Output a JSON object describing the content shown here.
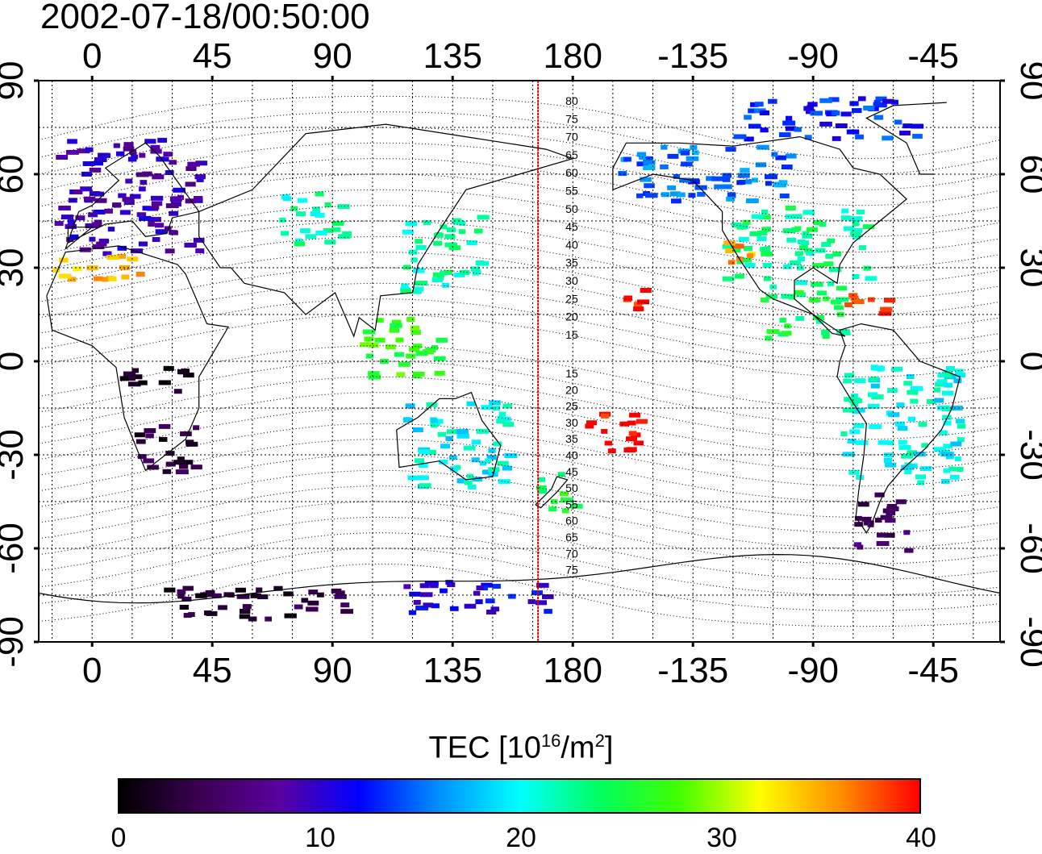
{
  "timestamp": "2002-07-18/00:50:00",
  "lon_ticks": [
    "0",
    "45",
    "90",
    "135",
    "180",
    "-135",
    "-90",
    "-45"
  ],
  "lat_ticks": [
    "90",
    "60",
    "30",
    "0",
    "-30",
    "-60",
    "-90"
  ],
  "mlat_labels_north": [
    "80",
    "75",
    "70",
    "65",
    "60",
    "55",
    "50",
    "45",
    "40",
    "35",
    "30",
    "25",
    "20",
    "15"
  ],
  "mlat_labels_south": [
    "15",
    "20",
    "25",
    "30",
    "35",
    "40",
    "45",
    "50",
    "55",
    "60",
    "65",
    "70",
    "75"
  ],
  "colorbar": {
    "title_prefix": "TEC  [10",
    "title_exp": "16",
    "title_mid": "/m",
    "title_exp2": "2",
    "title_suffix": "]",
    "ticks": [
      "0",
      "10",
      "20",
      "30",
      "40"
    ],
    "range": [
      0,
      40
    ],
    "colors": [
      "#000000",
      "#3a0050",
      "#5a00a0",
      "#0000ff",
      "#0090ff",
      "#00ffff",
      "#00ff60",
      "#40ff00",
      "#ffff00",
      "#ff9000",
      "#ff0000"
    ]
  },
  "map": {
    "projection": "equirectangular",
    "lon_center": 160,
    "lat_range": [
      -90,
      90
    ],
    "red_meridian_lon": 167,
    "grid": "dotted, 15 degree spacing",
    "tec_regions": [
      {
        "name": "Europe",
        "lon": [
          -15,
          40
        ],
        "lat": [
          35,
          72
        ],
        "tec": 9
      },
      {
        "name": "North Africa edge",
        "lon": [
          -15,
          20
        ],
        "lat": [
          27,
          35
        ],
        "tec": 34
      },
      {
        "name": "Southern Africa",
        "lon": [
          12,
          38
        ],
        "lat": [
          -35,
          -20
        ],
        "tec": 3
      },
      {
        "name": "Central Africa",
        "lon": [
          8,
          35
        ],
        "lat": [
          -10,
          0
        ],
        "tec": 1
      },
      {
        "name": "Central Asia",
        "lon": [
          70,
          95
        ],
        "lat": [
          38,
          55
        ],
        "tec": 22
      },
      {
        "name": "East Asia",
        "lon": [
          115,
          145
        ],
        "lat": [
          22,
          48
        ],
        "tec": 22
      },
      {
        "name": "Southeast Asia",
        "lon": [
          100,
          130
        ],
        "lat": [
          -5,
          15
        ],
        "tec": 27
      },
      {
        "name": "Australia",
        "lon": [
          115,
          155
        ],
        "lat": [
          -40,
          -12
        ],
        "tec": 20
      },
      {
        "name": "New Zealand",
        "lon": [
          165,
          180
        ],
        "lat": [
          -48,
          -35
        ],
        "tec": 25
      },
      {
        "name": "Pacific south",
        "lon": [
          -178,
          -155
        ],
        "lat": [
          -28,
          -15
        ],
        "tec": 40
      },
      {
        "name": "Hawaii",
        "lon": [
          -162,
          -152
        ],
        "lat": [
          17,
          25
        ],
        "tec": 40
      },
      {
        "name": "Alaska Canada",
        "lon": [
          -165,
          -100
        ],
        "lat": [
          52,
          70
        ],
        "tec": 15
      },
      {
        "name": "United States",
        "lon": [
          -125,
          -70
        ],
        "lat": [
          25,
          50
        ],
        "tec": 23
      },
      {
        "name": "California",
        "lon": [
          -125,
          -112
        ],
        "lat": [
          30,
          40
        ],
        "tec": 35
      },
      {
        "name": "Arctic",
        "lon": [
          -120,
          -50
        ],
        "lat": [
          72,
          85
        ],
        "tec": 13
      },
      {
        "name": "Central America",
        "lon": [
          -110,
          -80
        ],
        "lat": [
          8,
          25
        ],
        "tec": 24
      },
      {
        "name": "Caribbean",
        "lon": [
          -80,
          -60
        ],
        "lat": [
          15,
          22
        ],
        "tec": 38
      },
      {
        "name": "South America",
        "lon": [
          -80,
          -35
        ],
        "lat": [
          -40,
          0
        ],
        "tec": 20
      },
      {
        "name": "Southern South America",
        "lon": [
          -75,
          -55
        ],
        "lat": [
          -60,
          -40
        ],
        "tec": 5
      },
      {
        "name": "Antarctica west",
        "lon": [
          20,
          95
        ],
        "lat": [
          -82,
          -72
        ],
        "tec": 3
      },
      {
        "name": "Antarctica east",
        "lon": [
          115,
          175
        ],
        "lat": [
          -80,
          -70
        ],
        "tec": 11
      }
    ]
  }
}
